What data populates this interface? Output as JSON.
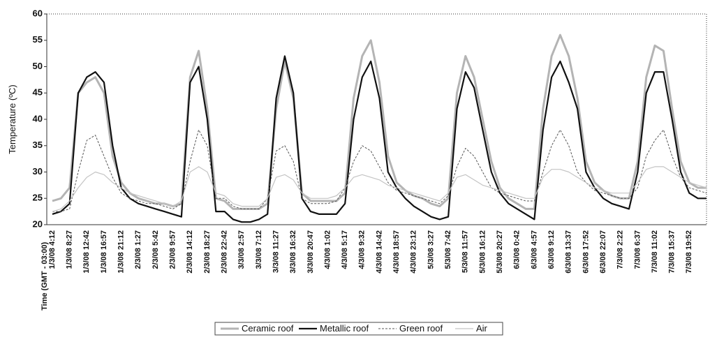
{
  "chart_data": {
    "type": "line",
    "ylabel": "Temperature (ºC)",
    "xlabel": "Time (GMT - 03:00)",
    "categories": [
      "1/3/08 4:12",
      null,
      "1/3/08 8:27",
      null,
      "1/3/08 12:42",
      null,
      "1/3/08 16:57",
      null,
      "1/3/08 21:12",
      null,
      "2/3/08 1:27",
      null,
      "2/3/08 5:42",
      null,
      "2/3/08 9:57",
      null,
      "2/3/08 14:12",
      null,
      "2/3/08 18:27",
      null,
      "2/3/08 22:42",
      null,
      "3/3/08 2:57",
      null,
      "3/3/08 7:12",
      null,
      "3/3/08 11:27",
      null,
      "3/3/08 16:32",
      null,
      "3/3/08 20:47",
      null,
      "4/3/08 1:02",
      null,
      "4/3/08 5:17",
      null,
      "4/3/08 9:32",
      null,
      "4/3/08 14:42",
      null,
      "4/3/08 18:57",
      null,
      "4/3/08 23:12",
      null,
      "5/3/08 3:27",
      null,
      "5/3/08 7:42",
      null,
      "5/3/08 11:57",
      null,
      "5/3/08 16:12",
      null,
      "5/3/08 20:27",
      null,
      "6/3/08 0:42",
      null,
      "6/3/08 4:57",
      null,
      "6/3/08 9:12",
      null,
      "6/3/08 13:37",
      null,
      "6/3/08 17:52",
      null,
      "6/3/08 22:07",
      null,
      "7/3/08 2:22",
      null,
      "7/3/08 6:37",
      null,
      "7/3/08 11:02",
      null,
      "7/3/08 15:37",
      null,
      "7/3/08 19:52",
      null,
      null
    ],
    "series": [
      {
        "name": "Ceramic roof",
        "color": "#b4b4b4",
        "values": [
          24.5,
          25,
          27,
          45,
          47,
          48,
          45,
          33,
          28,
          26,
          25,
          24.5,
          24,
          24,
          23.5,
          24,
          48,
          53,
          42,
          25,
          24.5,
          23,
          23,
          23,
          23,
          24,
          42,
          51,
          44,
          26,
          24.5,
          24.5,
          24.5,
          24.5,
          26,
          44,
          52,
          55,
          47,
          33,
          28,
          26.5,
          25.5,
          25,
          24,
          23.5,
          25,
          45,
          52,
          48,
          40,
          32,
          27,
          25,
          24,
          23,
          23,
          42,
          52,
          56,
          52,
          44,
          32,
          28,
          26.5,
          25.5,
          25,
          25,
          32,
          48,
          54,
          53,
          42,
          32,
          28,
          27,
          27
        ]
      },
      {
        "name": "Metallic roof",
        "color": "#111111",
        "values": [
          22,
          22.5,
          24,
          45,
          48,
          49,
          47,
          35,
          27,
          25,
          24,
          23.5,
          23,
          22.5,
          22,
          21.5,
          47,
          50,
          40,
          22.5,
          22.5,
          21,
          20.5,
          20.5,
          21,
          22,
          44,
          52,
          45,
          25,
          22.5,
          22,
          22,
          22,
          24,
          40,
          48,
          51,
          44,
          30,
          27,
          25,
          23.5,
          22.5,
          21.5,
          21,
          21.5,
          42,
          49,
          46,
          38,
          30,
          26,
          24,
          23,
          22,
          21,
          38,
          48,
          51,
          47,
          42,
          30,
          27,
          25,
          24,
          23.5,
          23,
          30,
          45,
          49,
          49,
          40,
          30,
          26,
          25,
          25
        ]
      },
      {
        "name": "Green roof",
        "color": "#555555",
        "values": [
          22.5,
          22.5,
          23,
          30,
          36,
          37,
          33,
          29,
          26,
          25,
          24.5,
          24,
          24,
          23.5,
          23,
          24,
          32,
          38,
          35,
          25,
          25,
          23.5,
          23,
          23,
          23,
          25,
          34,
          35,
          32,
          25,
          24,
          24,
          24,
          24.5,
          27,
          32,
          35,
          34,
          31,
          28,
          26.5,
          26,
          25.5,
          25,
          24.5,
          24,
          25.5,
          31,
          34.5,
          33,
          30,
          27,
          26,
          25.5,
          25,
          24.5,
          24.5,
          30,
          35,
          38,
          35,
          30,
          28,
          26.5,
          26,
          25.5,
          25,
          25,
          27,
          33,
          36,
          38,
          33,
          29,
          27,
          26.5,
          26
        ]
      },
      {
        "name": "Air",
        "color": "#c4c4c4",
        "values": [
          22.5,
          23,
          24.5,
          27,
          29,
          30,
          29.5,
          28,
          27,
          26,
          25.5,
          25,
          24.5,
          24,
          23.5,
          24.5,
          30,
          31,
          30,
          26,
          25.5,
          24,
          23.5,
          23.5,
          23.5,
          25,
          29,
          29.5,
          28.5,
          26,
          25,
          25,
          25,
          25.5,
          27,
          29,
          29.5,
          29,
          28.5,
          27.5,
          27,
          26.5,
          26,
          25.5,
          25,
          24.5,
          26,
          29,
          29.5,
          28.5,
          27.5,
          27,
          26.5,
          26,
          25.5,
          25,
          25,
          29,
          30.5,
          30.5,
          30,
          29,
          28,
          27,
          26.5,
          26,
          26,
          26,
          28,
          30.5,
          31,
          31,
          30,
          29,
          28,
          27.5,
          27
        ]
      }
    ],
    "ylim": [
      20,
      60
    ],
    "yticks": [
      20,
      25,
      30,
      35,
      40,
      45,
      50,
      55,
      60
    ],
    "grid": false,
    "legend": "bottom"
  }
}
